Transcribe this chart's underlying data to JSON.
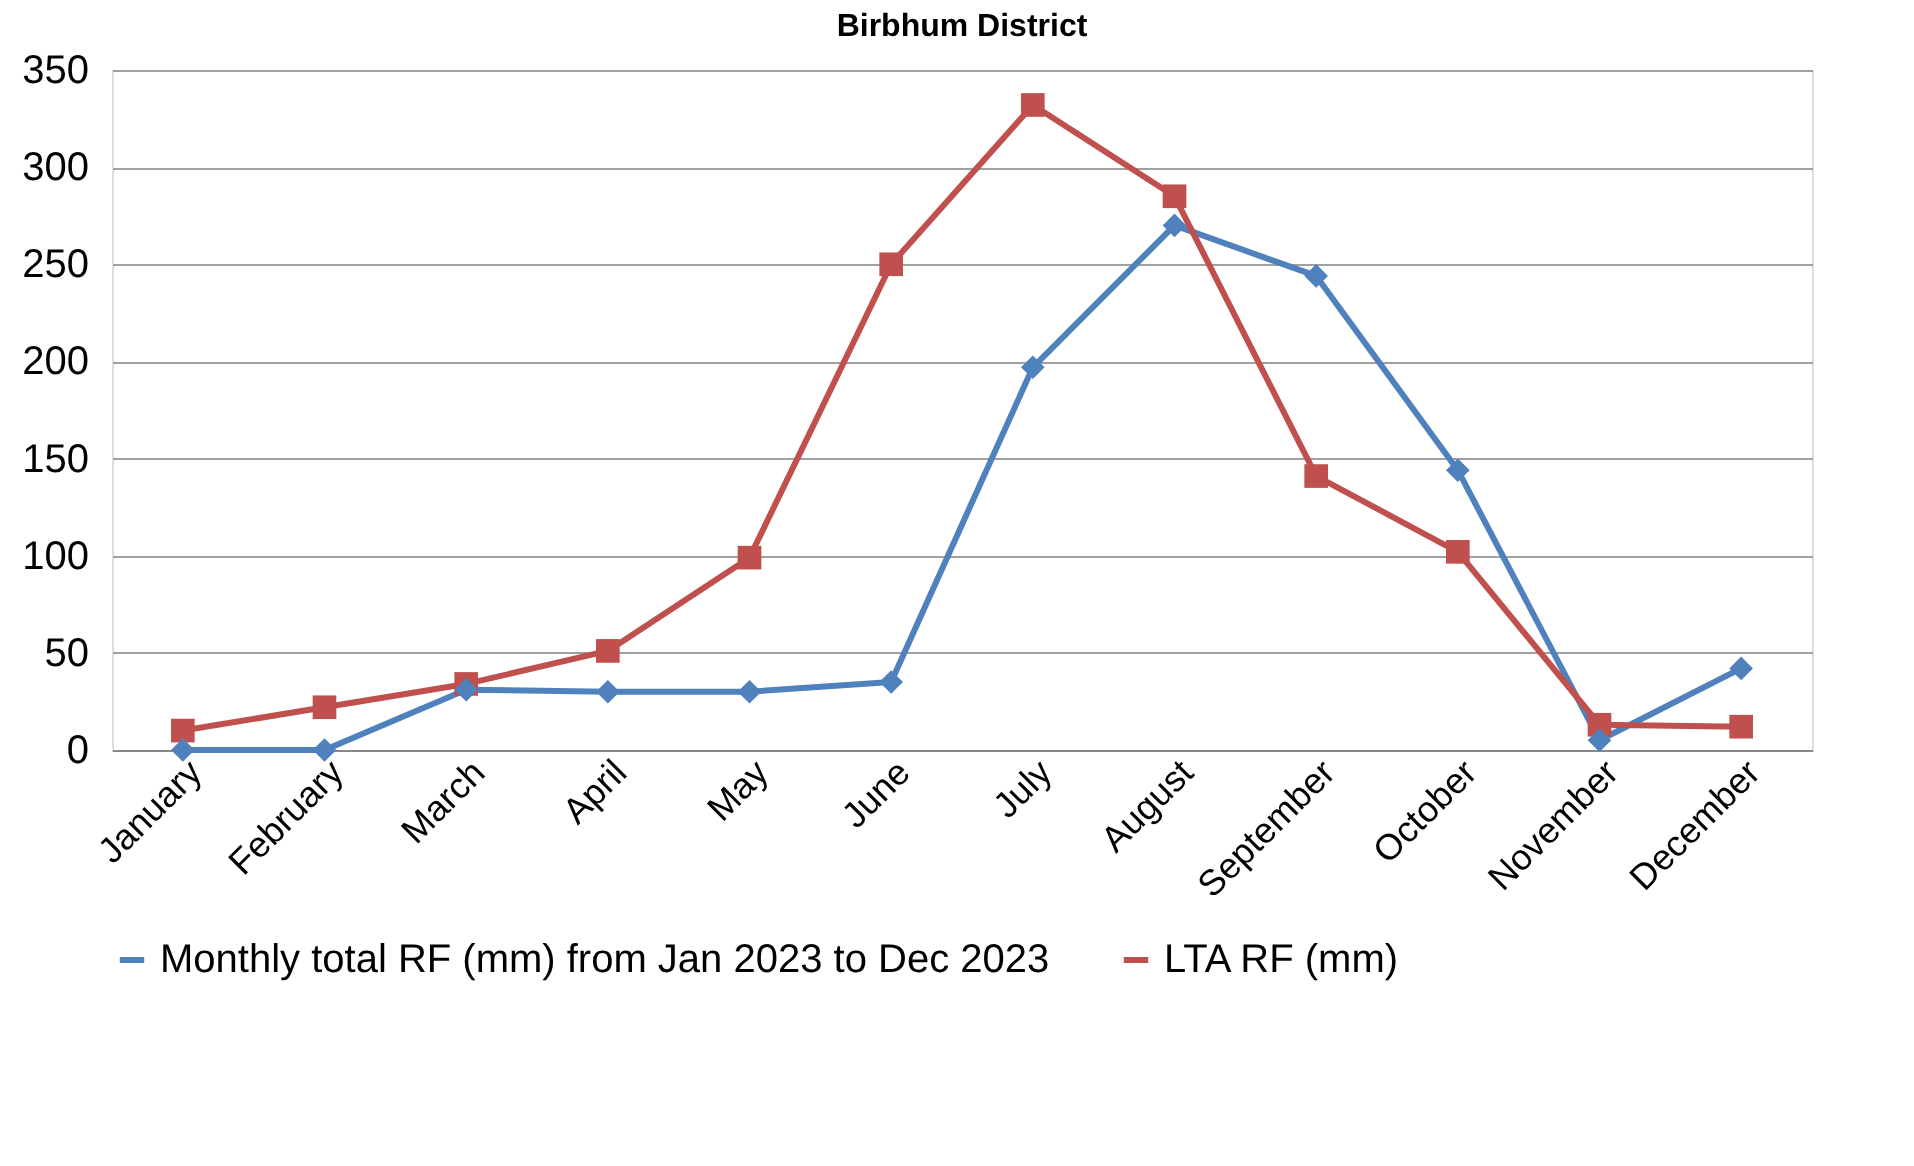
{
  "chart_data": {
    "type": "line",
    "title": "Birbhum District",
    "categories": [
      "January",
      "February",
      "March",
      "April",
      "May",
      "June",
      "July",
      "August",
      "September",
      "October",
      "November",
      "December"
    ],
    "series": [
      {
        "name": "Monthly total RF (mm) from Jan 2023 to Dec 2023",
        "color": "#4f81bd",
        "marker": "diamond",
        "values": [
          0,
          0,
          31,
          30,
          30,
          35,
          197,
          270,
          244,
          144,
          5,
          42
        ]
      },
      {
        "name": "LTA RF (mm)",
        "color": "#c0504d",
        "marker": "square",
        "values": [
          10,
          22,
          34,
          51,
          99,
          250,
          332,
          285,
          141,
          102,
          13,
          12
        ]
      }
    ],
    "ylim": [
      0,
      350
    ],
    "yticks": [
      0,
      50,
      100,
      150,
      200,
      250,
      300,
      350
    ],
    "grid": "y",
    "legend": "bottom",
    "line_style": "solid"
  }
}
